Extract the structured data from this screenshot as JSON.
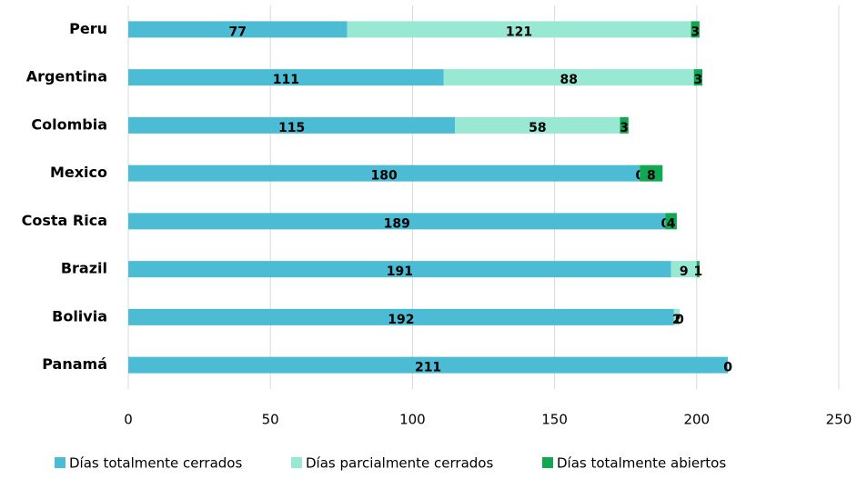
{
  "chart_data": {
    "type": "bar",
    "orientation": "horizontal",
    "stacked": true,
    "grid": true,
    "categories": [
      "Peru",
      "Argentina",
      "Colombia",
      "Mexico",
      "Costa Rica",
      "Brazil",
      "Bolivia",
      "Panamá"
    ],
    "series": [
      {
        "name": "Días totalmente cerrados",
        "color": "#4bbcd3",
        "values": [
          77,
          111,
          115,
          180,
          189,
          191,
          192,
          211
        ]
      },
      {
        "name": "Días parcialmente cerrados",
        "color": "#98e8d4",
        "values": [
          121,
          88,
          58,
          0,
          0,
          9,
          2,
          0
        ]
      },
      {
        "name": "Días totalmente abiertos",
        "color": "#12a853",
        "values": [
          3,
          3,
          3,
          8,
          4,
          1,
          0,
          0
        ]
      }
    ],
    "xlim": [
      0,
      250
    ],
    "xticks": [
      0,
      50,
      100,
      150,
      200,
      250
    ],
    "legend": "bottom"
  }
}
